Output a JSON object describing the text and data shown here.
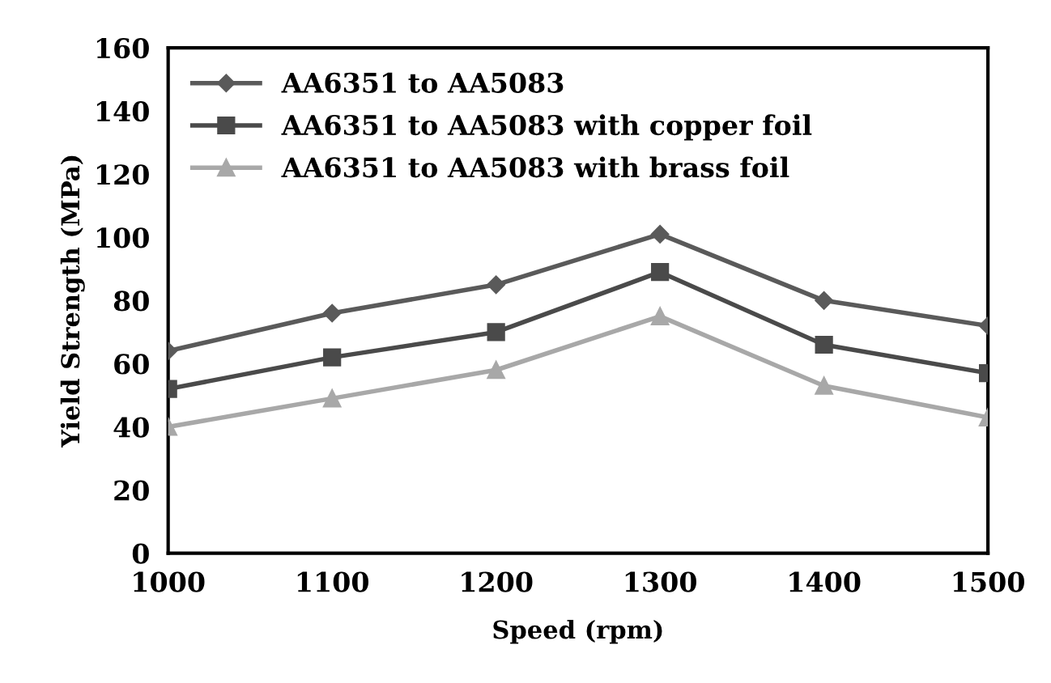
{
  "chart_data": {
    "type": "line",
    "xlabel": "Speed (rpm)",
    "ylabel": "Yield Strength (MPa)",
    "x": [
      1000,
      1100,
      1200,
      1300,
      1400,
      1500
    ],
    "xlim": [
      1000,
      1500
    ],
    "xticks": [
      1000,
      1100,
      1200,
      1300,
      1400,
      1500
    ],
    "ylim": [
      0,
      160
    ],
    "yticks": [
      0,
      20,
      40,
      60,
      80,
      100,
      120,
      140,
      160
    ],
    "grid": false,
    "legend": "top left",
    "line_style": "solid",
    "series": [
      {
        "name": "AA6351 to AA5083",
        "color": "#5a5a5a",
        "marker": "diamond",
        "values": [
          64,
          76,
          85,
          101,
          80,
          72
        ]
      },
      {
        "name": "AA6351 to AA5083 with copper foil",
        "color": "#4a4a4a",
        "marker": "square",
        "values": [
          52,
          62,
          70,
          89,
          66,
          57
        ]
      },
      {
        "name": "AA6351 to AA5083 with brass foil",
        "color": "#a8a8a8",
        "marker": "triangle",
        "values": [
          40,
          49,
          58,
          75,
          53,
          43
        ]
      }
    ]
  }
}
